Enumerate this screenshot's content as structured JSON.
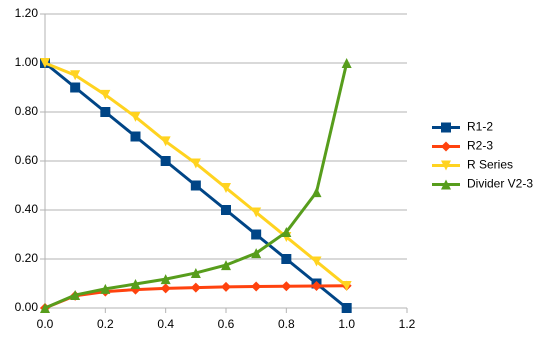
{
  "chart_data": {
    "type": "line",
    "x": [
      0,
      0.1,
      0.2,
      0.3,
      0.4,
      0.5,
      0.6,
      0.7,
      0.8,
      0.9,
      1.0
    ],
    "series": [
      {
        "name": "R1-2",
        "color": "#004586",
        "marker": "square",
        "values": [
          1,
          0.9,
          0.8,
          0.7,
          0.6,
          0.5,
          0.4,
          0.3,
          0.2,
          0.1,
          0
        ]
      },
      {
        "name": "R2-3",
        "color": "#ff420e",
        "marker": "diamond",
        "values": [
          0,
          0.05,
          0.067,
          0.075,
          0.08,
          0.083,
          0.086,
          0.088,
          0.089,
          0.09,
          0.091
        ]
      },
      {
        "name": "R Series",
        "color": "#ffd320",
        "marker": "triangle-down",
        "values": [
          1,
          0.95,
          0.87,
          0.78,
          0.68,
          0.59,
          0.49,
          0.39,
          0.29,
          0.19,
          0.09
        ]
      },
      {
        "name": "Divider V2-3",
        "color": "#579d1c",
        "marker": "triangle-up",
        "values": [
          0,
          0.053,
          0.078,
          0.098,
          0.118,
          0.143,
          0.175,
          0.224,
          0.31,
          0.473,
          1.0
        ]
      }
    ],
    "xlim": [
      0,
      1.2
    ],
    "xticks": [
      {
        "value": 0,
        "label": "0.0"
      },
      {
        "value": 0.2,
        "label": "0.2"
      },
      {
        "value": 0.4,
        "label": "0.4"
      },
      {
        "value": 0.6,
        "label": "0.6"
      },
      {
        "value": 0.8,
        "label": "0.8"
      },
      {
        "value": 1.0,
        "label": "1.0"
      },
      {
        "value": 1.2,
        "label": "1.2"
      }
    ],
    "ylim": [
      0,
      1.2
    ],
    "yticks": [
      {
        "value": 0,
        "label": "0.00"
      },
      {
        "value": 0.2,
        "label": "0.20"
      },
      {
        "value": 0.4,
        "label": "0.40"
      },
      {
        "value": 0.6,
        "label": "0.60"
      },
      {
        "value": 0.8,
        "label": "0.80"
      },
      {
        "value": 1.0,
        "label": "1.00"
      },
      {
        "value": 1.2,
        "label": "1.20"
      }
    ],
    "grid": true,
    "legend": "right"
  }
}
